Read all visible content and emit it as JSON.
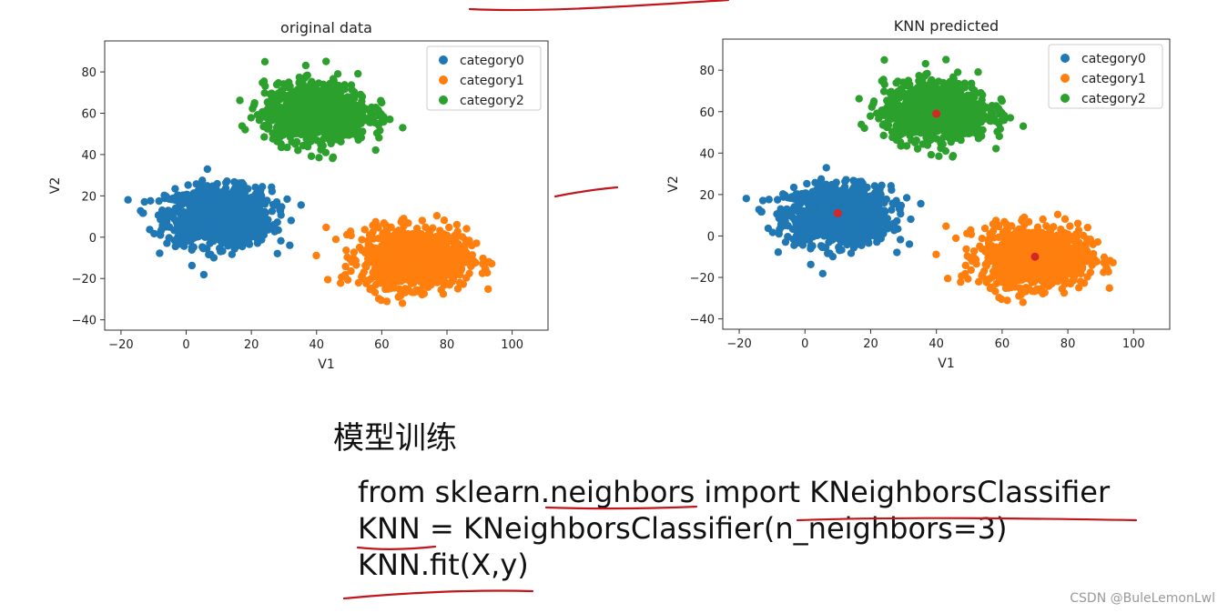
{
  "chart_data": [
    {
      "type": "scatter",
      "title": "original data",
      "xlabel": "V1",
      "ylabel": "V2",
      "xlim": [
        -25,
        111
      ],
      "ylim": [
        -45,
        95
      ],
      "xticks": [
        -20,
        0,
        20,
        40,
        60,
        80,
        100
      ],
      "yticks": [
        -40,
        -20,
        0,
        20,
        40,
        60,
        80
      ],
      "legend_position": "top-right",
      "series": [
        {
          "name": "category0",
          "color": "#1f77b4",
          "center": [
            10,
            10
          ],
          "spread": [
            8,
            7
          ],
          "count": 1000
        },
        {
          "name": "category1",
          "color": "#ff7f0e",
          "center": [
            70,
            -10
          ],
          "spread": [
            8,
            7
          ],
          "count": 1000
        },
        {
          "name": "category2",
          "color": "#2ca02c",
          "center": [
            40,
            60
          ],
          "spread": [
            8,
            7
          ],
          "count": 1000
        }
      ]
    },
    {
      "type": "scatter",
      "title": "KNN predicted",
      "xlabel": "V1",
      "ylabel": "V2",
      "xlim": [
        -25,
        111
      ],
      "ylim": [
        -45,
        95
      ],
      "xticks": [
        -20,
        0,
        20,
        40,
        60,
        80,
        100
      ],
      "yticks": [
        -40,
        -20,
        0,
        20,
        40,
        60,
        80
      ],
      "legend_position": "top-right",
      "series": [
        {
          "name": "category0",
          "color": "#1f77b4",
          "center": [
            10,
            10
          ],
          "spread": [
            8,
            7
          ],
          "count": 1000
        },
        {
          "name": "category1",
          "color": "#ff7f0e",
          "center": [
            70,
            -10
          ],
          "spread": [
            8,
            7
          ],
          "count": 1000
        },
        {
          "name": "category2",
          "color": "#2ca02c",
          "center": [
            40,
            60
          ],
          "spread": [
            8,
            7
          ],
          "count": 1000
        }
      ],
      "highlight_points": [
        {
          "x": 10,
          "y": 11,
          "color": "#d62728"
        },
        {
          "x": 40,
          "y": 59,
          "color": "#d62728"
        },
        {
          "x": 70,
          "y": -10,
          "color": "#d62728"
        }
      ]
    }
  ],
  "section": {
    "title": "模型训练",
    "code_lines": [
      "from sklearn.neighbors import KNeighborsClassifier",
      "KNN = KNeighborsClassifier(n_neighbors=3)",
      "KNN.fit(X,y)"
    ]
  },
  "watermark": "CSDN @BuleLemonLwl",
  "annotation_color": "#c0161c"
}
